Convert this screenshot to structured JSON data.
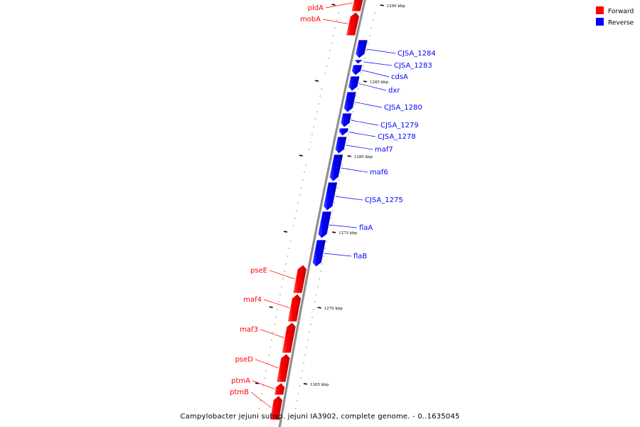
{
  "legend": {
    "forward": {
      "label": "Forward",
      "color": "#ff0000"
    },
    "reverse": {
      "label": "Reverse",
      "color": "#0000ff"
    }
  },
  "caption": "Campylobacter jejuni subsp. jejuni IA3902, complete genome. - 0..1635045",
  "colors": {
    "forward": "#ff0000",
    "reverse": "#0000ff",
    "backbone": "#888888"
  },
  "ticks": [
    "1290 kbp",
    "1285 kbp",
    "1280 kbp",
    "1275 kbp",
    "1270 kbp",
    "1265 kbp"
  ],
  "features": [
    {
      "label": "pldA",
      "strand": "forward"
    },
    {
      "label": "mobA",
      "strand": "forward"
    },
    {
      "label": "CJSA_1284",
      "strand": "reverse"
    },
    {
      "label": "CJSA_1283",
      "strand": "reverse"
    },
    {
      "label": "cdsA",
      "strand": "reverse"
    },
    {
      "label": "dxr",
      "strand": "reverse"
    },
    {
      "label": "CJSA_1280",
      "strand": "reverse"
    },
    {
      "label": "CJSA_1279",
      "strand": "reverse"
    },
    {
      "label": "CJSA_1278",
      "strand": "reverse"
    },
    {
      "label": "maf7",
      "strand": "reverse"
    },
    {
      "label": "maf6",
      "strand": "reverse"
    },
    {
      "label": "CJSA_1275",
      "strand": "reverse"
    },
    {
      "label": "flaA",
      "strand": "reverse"
    },
    {
      "label": "flaB",
      "strand": "reverse"
    },
    {
      "label": "pseE",
      "strand": "forward"
    },
    {
      "label": "maf4",
      "strand": "forward"
    },
    {
      "label": "maf3",
      "strand": "forward"
    },
    {
      "label": "pseD",
      "strand": "forward"
    },
    {
      "label": "ptmA",
      "strand": "forward"
    },
    {
      "label": "ptmB",
      "strand": "forward"
    }
  ]
}
